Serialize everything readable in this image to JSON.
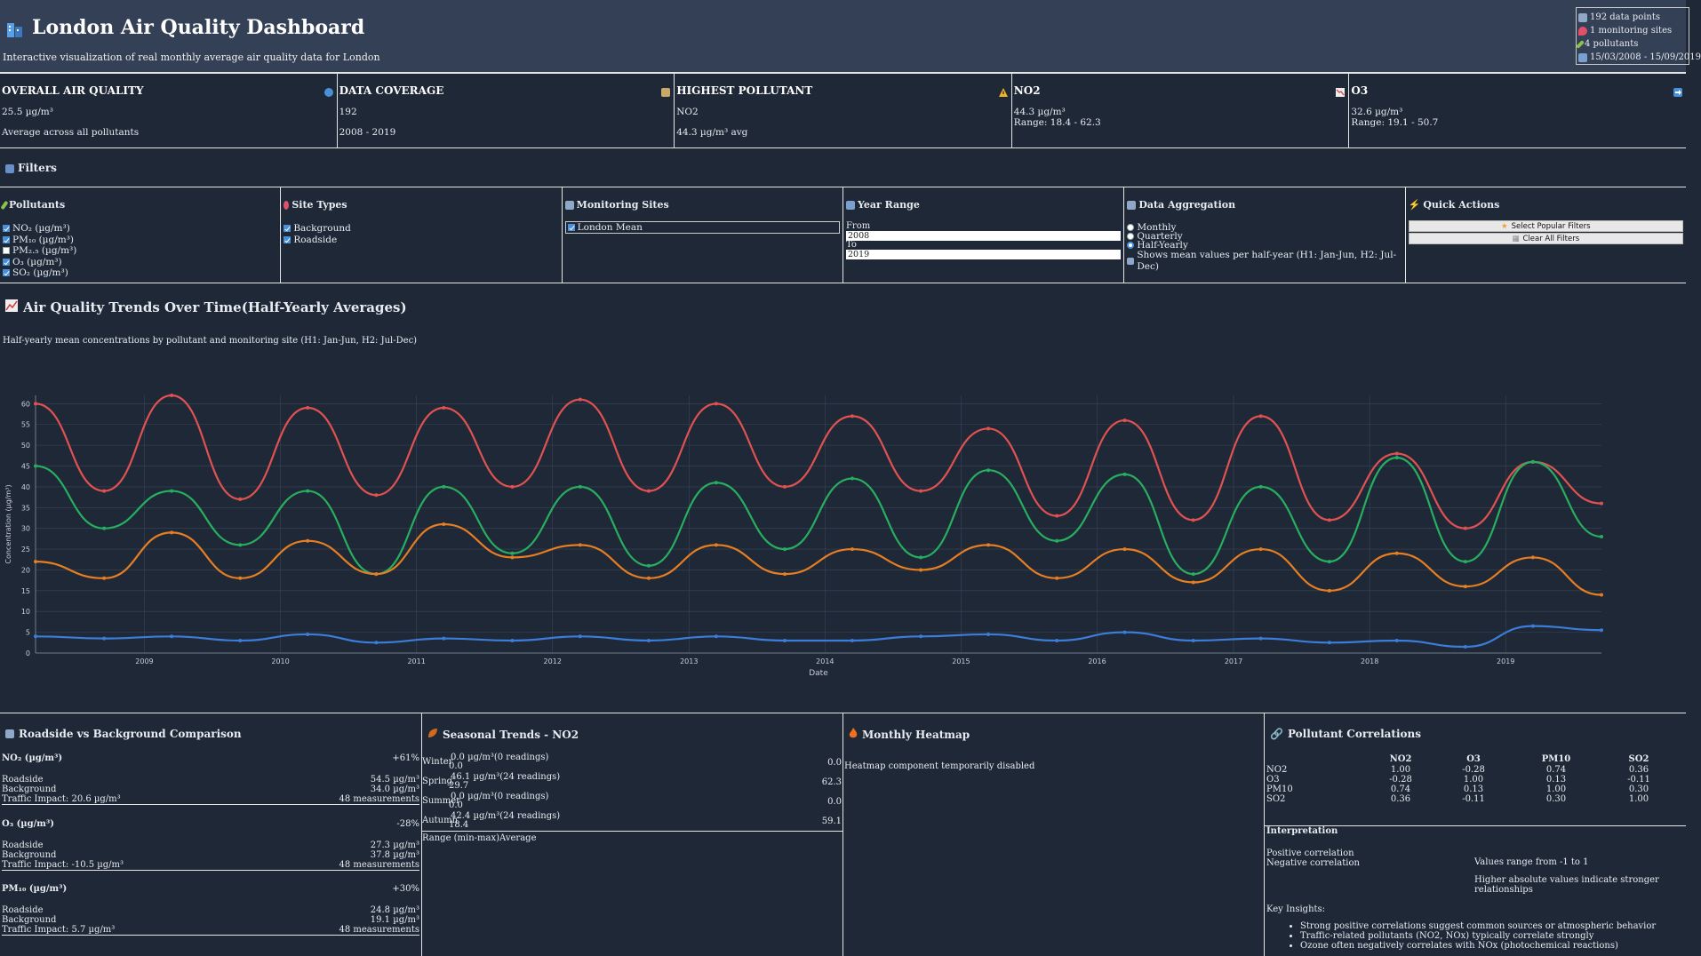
{
  "header": {
    "title": "London Air Quality Dashboard",
    "subtitle": "Interactive visualization of real monthly average air quality data for London",
    "meta": [
      "192 data points",
      "1 monitoring sites",
      "4 pollutants",
      "15/03/2008 - 15/09/2019"
    ]
  },
  "stats": [
    {
      "title": "OVERALL AIR QUALITY",
      "v1": "25.5 µg/m³",
      "v2": "Average across all pollutants",
      "icon": "globe-icon",
      "color": "#4a90d9"
    },
    {
      "title": "DATA COVERAGE",
      "v1": "192",
      "v2": "2008 - 2019",
      "icon": "bar-chart-icon",
      "color": "#c9a86a"
    },
    {
      "title": "HIGHEST POLLUTANT",
      "v1": "NO2",
      "v2": "44.3 µg/m³ avg",
      "icon": "warning-icon",
      "color": "#f0b429"
    },
    {
      "title": "NO2",
      "v1": "44.3 µg/m³",
      "v2": "Range: 18.4 - 62.3",
      "icon": "trend-down-icon",
      "color": "#e57373"
    },
    {
      "title": "O3",
      "v1": "32.6 µg/m³",
      "v2": "Range: 19.1 - 50.7",
      "icon": "arrow-right-icon",
      "color": "#4a90d9"
    }
  ],
  "filters": {
    "title": "Filters",
    "pollutants": {
      "title": "Pollutants",
      "items": [
        {
          "label": "NO₂ (µg/m³)",
          "checked": true
        },
        {
          "label": "PM₁₀ (µg/m³)",
          "checked": true
        },
        {
          "label": "PM₂.₅ (µg/m³)",
          "checked": false
        },
        {
          "label": "O₃ (µg/m³)",
          "checked": true
        },
        {
          "label": "SO₂ (µg/m³)",
          "checked": true
        }
      ]
    },
    "site_types": {
      "title": "Site Types",
      "items": [
        {
          "label": "Background",
          "checked": true
        },
        {
          "label": "Roadside",
          "checked": true
        }
      ]
    },
    "sites": {
      "title": "Monitoring Sites",
      "selected": "London Mean"
    },
    "years": {
      "title": "Year Range",
      "from_label": "From",
      "from": "2008",
      "to_label": "To",
      "to": "2019"
    },
    "aggregation": {
      "title": "Data Aggregation",
      "options": [
        {
          "label": "Monthly",
          "selected": false
        },
        {
          "label": "Quarterly",
          "selected": false
        },
        {
          "label": "Half-Yearly",
          "selected": true
        }
      ],
      "note": "Shows mean values per half-year (H1: Jan-Jun, H2: Jul-Dec)"
    },
    "quick": {
      "title": "Quick Actions",
      "select_popular": "Select Popular Filters",
      "clear_all": "Clear All Filters"
    }
  },
  "trend": {
    "title": "Air Quality Trends Over Time(Half-Yearly Averages)",
    "subtitle": "Half-yearly mean concentrations by pollutant and monitoring site (H1: Jan-Jun, H2: Jul-Dec)"
  },
  "chart_data": {
    "type": "line",
    "x": [
      "2008-03",
      "2008-09",
      "2009-03",
      "2009-09",
      "2010-03",
      "2010-09",
      "2011-03",
      "2011-09",
      "2012-03",
      "2012-09",
      "2013-03",
      "2013-09",
      "2014-03",
      "2014-09",
      "2015-03",
      "2015-09",
      "2016-03",
      "2016-09",
      "2017-03",
      "2017-09",
      "2018-03",
      "2018-09",
      "2019-03",
      "2019-09"
    ],
    "xlabel": "Date",
    "ylabel": "Concentration (µg/m³)",
    "ylim": [
      0,
      62
    ],
    "yticks": [
      0,
      5,
      10,
      15,
      20,
      25,
      30,
      35,
      40,
      45,
      50,
      55,
      60
    ],
    "xticks": [
      "2009",
      "2010",
      "2011",
      "2012",
      "2013",
      "2014",
      "2015",
      "2016",
      "2017",
      "2018",
      "2019"
    ],
    "grid": true,
    "series": [
      {
        "color": "#e05252",
        "values": [
          60,
          39,
          62,
          37,
          59,
          38,
          59,
          40,
          61,
          39,
          60,
          40,
          57,
          39,
          54,
          33,
          56,
          32,
          57,
          32,
          48,
          30,
          46,
          36
        ]
      },
      {
        "color": "#27ae60",
        "values": [
          45,
          30,
          39,
          26,
          39,
          19,
          40,
          24,
          40,
          21,
          41,
          25,
          42,
          23,
          44,
          27,
          43,
          19,
          40,
          22,
          47,
          22,
          46,
          28
        ]
      },
      {
        "color": "#e67e22",
        "values": [
          22,
          18,
          29,
          18,
          27,
          19,
          31,
          23,
          26,
          18,
          26,
          19,
          25,
          20,
          26,
          18,
          25,
          17,
          25,
          15,
          24,
          16,
          23,
          14
        ]
      },
      {
        "color": "#3b7dd8",
        "values": [
          4,
          3.5,
          4,
          3,
          4.5,
          2.5,
          3.5,
          3,
          4,
          3,
          4,
          3,
          3,
          4,
          4.5,
          3,
          5,
          3,
          3.5,
          2.5,
          3,
          1.5,
          6.5,
          5.5
        ]
      }
    ]
  },
  "comparison": {
    "title": "Roadside vs Background Comparison",
    "items": [
      {
        "name": "NO₂ (µg/m³)",
        "pct": "+61%",
        "roadside": "54.5 µg/m³",
        "background": "34.0 µg/m³",
        "impact": "Traffic Impact: 20.6 µg/m³",
        "n": "48 measurements"
      },
      {
        "name": "O₃ (µg/m³)",
        "pct": "-28%",
        "roadside": "27.3 µg/m³",
        "background": "37.8 µg/m³",
        "impact": "Traffic Impact: -10.5 µg/m³",
        "n": "48 measurements"
      },
      {
        "name": "PM₁₀ (µg/m³)",
        "pct": "+30%",
        "roadside": "24.8 µg/m³",
        "background": "19.1 µg/m³",
        "impact": "Traffic Impact: 5.7 µg/m³",
        "n": "48 measurements"
      }
    ],
    "roadside_label": "Roadside",
    "background_label": "Background"
  },
  "seasonal": {
    "title": "Seasonal Trends - NO2",
    "rows": [
      {
        "season": "Winter",
        "value": "0.0 µg/m³(0 readings)",
        "min": "0.0",
        "max": "0.0"
      },
      {
        "season": "Spring",
        "value": "46.1 µg/m³(24 readings)",
        "min": "29.7",
        "max": "62.3"
      },
      {
        "season": "Summer",
        "value": "0.0 µg/m³(0 readings)",
        "min": "0.0",
        "max": "0.0"
      },
      {
        "season": "Autumn",
        "value": "42.4 µg/m³(24 readings)",
        "min": "18.4",
        "max": "59.1"
      }
    ],
    "legend": "Range (min-max)Average"
  },
  "heatmap": {
    "title": "Monthly Heatmap",
    "message": "Heatmap component temporarily disabled"
  },
  "correlations": {
    "title": "Pollutant Correlations",
    "columns": [
      "",
      "NO2",
      "O3",
      "PM10",
      "SO2"
    ],
    "rows": [
      [
        "NO2",
        "1.00",
        "-0.28",
        "0.74",
        "0.36"
      ],
      [
        "O3",
        "-0.28",
        "1.00",
        "0.13",
        "-0.11"
      ],
      [
        "PM10",
        "0.74",
        "0.13",
        "1.00",
        "0.30"
      ],
      [
        "SO2",
        "0.36",
        "-0.11",
        "0.30",
        "1.00"
      ]
    ],
    "interp_title": "Interpretation",
    "positive": "Positive correlation",
    "negative": "Negative correlation",
    "range_note": "Values range from -1 to 1",
    "abs_note": "Higher absolute values indicate stronger relationships",
    "insights_title": "Key Insights:",
    "insights": [
      "Strong positive correlations suggest common sources or atmospheric behavior",
      "Traffic-related pollutants (NO2, NOx) typically correlate strongly",
      "Ozone often negatively correlates with NOx (photochemical reactions)"
    ]
  }
}
